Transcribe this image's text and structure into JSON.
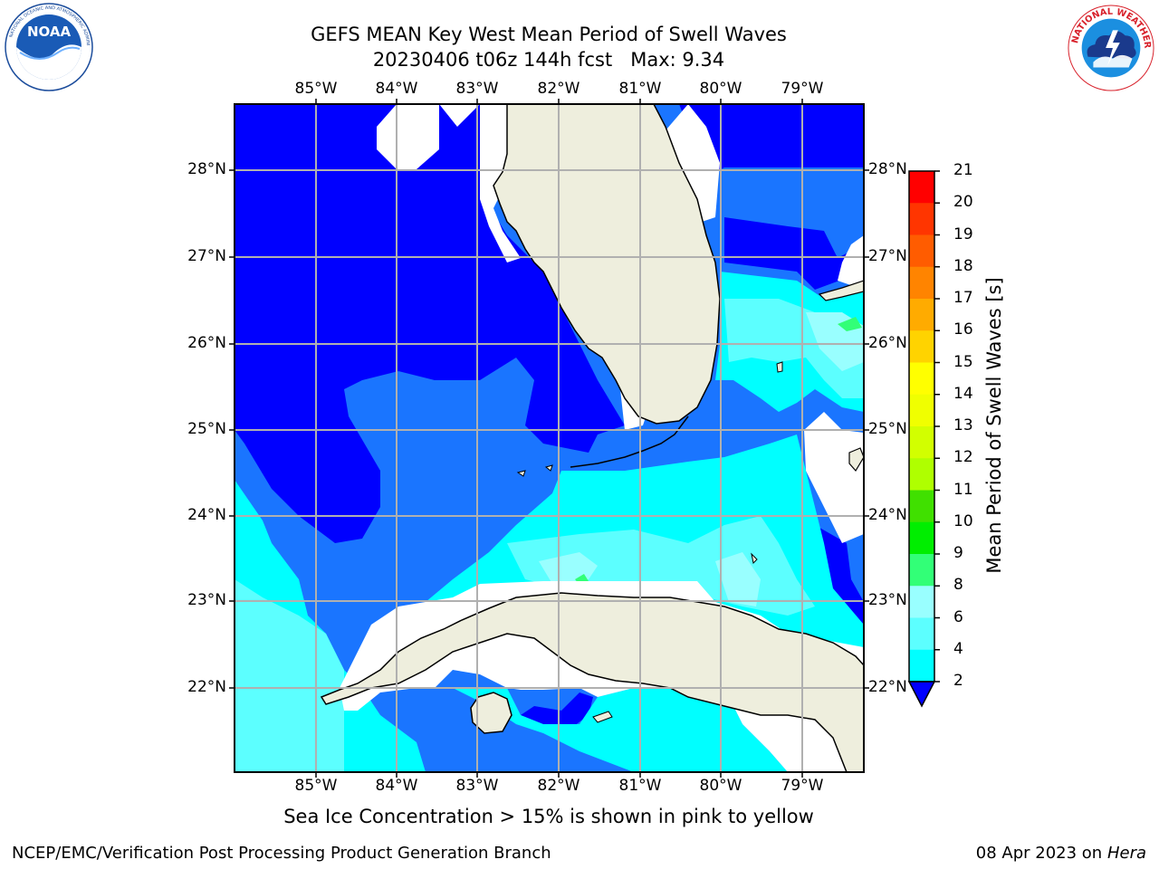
{
  "title": {
    "line1": "GEFS MEAN Key West Mean Period of Swell Waves",
    "line2": "20230406 t06z 144h fcst   Max: 9.34"
  },
  "longitudes": [
    "85°W",
    "84°W",
    "83°W",
    "82°W",
    "81°W",
    "80°W",
    "79°W"
  ],
  "latitudes": [
    "28°N",
    "27°N",
    "26°N",
    "25°N",
    "24°N",
    "23°N",
    "22°N"
  ],
  "colorbar": {
    "title": "Mean Period of Swell Waves [s]",
    "ticks": [
      "21",
      "20",
      "19",
      "18",
      "17",
      "16",
      "15",
      "14",
      "13",
      "12",
      "11",
      "10",
      "9",
      "8",
      "6",
      "4",
      "2"
    ],
    "colors": [
      "#ff0000",
      "#ff3500",
      "#ff5c00",
      "#ff8400",
      "#ffab00",
      "#ffd300",
      "#ffff00",
      "#f0ff00",
      "#d2ff00",
      "#afff00",
      "#40e000",
      "#00ee00",
      "#32ff77",
      "#99ffff",
      "#5cffff",
      "#00ffff",
      "#0099ff"
    ],
    "under_color": "#0000ff"
  },
  "field_colors": {
    "lt2": "#0000ff",
    "c2_4": "#1a75ff",
    "c4_6": "#00ffff",
    "c6_8": "#5cffff",
    "c8_9": "#99ffff",
    "c9_10": "#32ff77",
    "land": "#eeeedd"
  },
  "note": "Sea Ice Concentration > 15% is shown in pink to yellow",
  "footer": {
    "left": "NCEP/EMC/Verification Post Processing Product Generation Branch",
    "right_prefix": "08 Apr 2023 on ",
    "right_host": "Hera"
  }
}
